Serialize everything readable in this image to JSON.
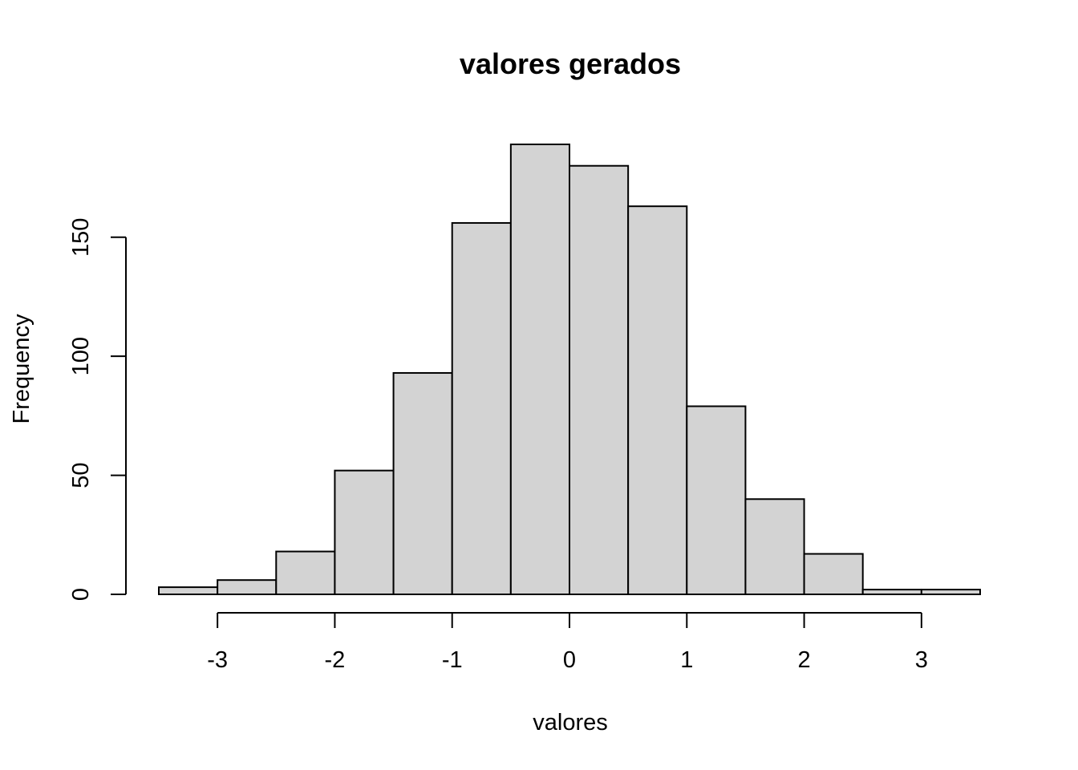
{
  "chart_data": {
    "type": "bar",
    "title": "valores gerados",
    "xlabel": "valores",
    "ylabel": "Frequency",
    "bin_edges": [
      -3.5,
      -3.0,
      -2.5,
      -2.0,
      -1.5,
      -1.0,
      -0.5,
      0.0,
      0.5,
      1.0,
      1.5,
      2.0,
      2.5,
      3.0,
      3.5
    ],
    "values": [
      3,
      6,
      18,
      52,
      93,
      156,
      189,
      180,
      163,
      79,
      40,
      17,
      2,
      2
    ],
    "xlim": [
      -3.5,
      3.5
    ],
    "ylim": [
      0,
      189
    ],
    "x_ticks": [
      -3,
      -2,
      -1,
      0,
      1,
      2,
      3
    ],
    "x_tick_labels": [
      "-3",
      "-2",
      "-1",
      "0",
      "1",
      "2",
      "3"
    ],
    "y_ticks": [
      0,
      50,
      100,
      150
    ],
    "y_tick_labels": [
      "0",
      "50",
      "100",
      "150"
    ],
    "bar_color": "#d3d3d3",
    "grid": false,
    "legend": "none"
  }
}
